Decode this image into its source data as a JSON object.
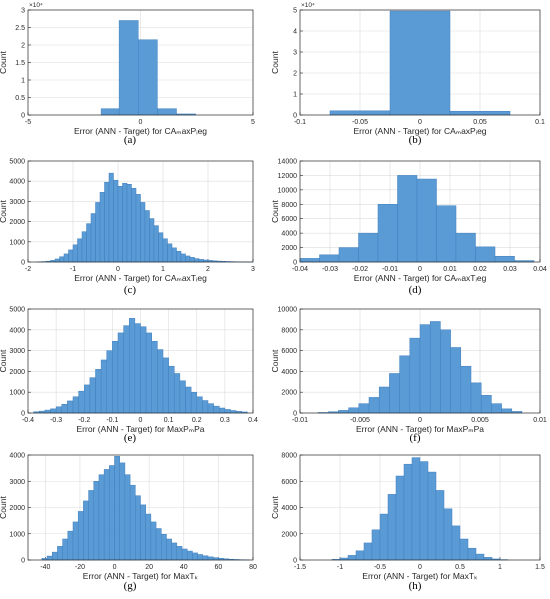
{
  "colors": {
    "bar_fill": "#5b9bd5",
    "bar_edge": "#3f7fbd",
    "grid": "#dcdcdc",
    "axis": "#262626"
  },
  "chart_data": [
    {
      "type": "bar",
      "panel_label": "(a)",
      "xlabel": "Error (ANN - Target) for CAₘaxPᵢeg",
      "ylabel": "Count",
      "xlim": [
        -5,
        5
      ],
      "ylim": [
        0,
        30000
      ],
      "x_ticks": [
        "-5",
        "0",
        "5"
      ],
      "y_ticks": [
        "0",
        "0.5",
        "1",
        "1.5",
        "2",
        "2.5",
        "3"
      ],
      "y_multiplier": "×10⁴",
      "grid": true,
      "bins": [
        {
          "start": -1.75,
          "end": -0.95,
          "count": 1800
        },
        {
          "start": -0.95,
          "end": -0.1,
          "count": 27000
        },
        {
          "start": -0.1,
          "end": 0.75,
          "count": 21500
        },
        {
          "start": 0.75,
          "end": 1.6,
          "count": 1800
        },
        {
          "start": 1.6,
          "end": 2.45,
          "count": 300
        }
      ]
    },
    {
      "type": "bar",
      "panel_label": "(b)",
      "xlabel": "Error (ANN - Target) for CAₘaxPᵢeg",
      "ylabel": "Count",
      "xlim": [
        -0.1,
        0.1
      ],
      "ylim": [
        0,
        50000
      ],
      "x_ticks": [
        "-0.1",
        "-0.05",
        "0",
        "0.05",
        "0.1"
      ],
      "y_ticks": [
        "0",
        "1",
        "2",
        "3",
        "4",
        "5"
      ],
      "y_multiplier": "×10⁴",
      "grid": true,
      "bins": [
        {
          "start": -0.075,
          "end": -0.025,
          "count": 2000
        },
        {
          "start": -0.025,
          "end": 0.025,
          "count": 49500
        },
        {
          "start": 0.025,
          "end": 0.075,
          "count": 1800
        }
      ]
    },
    {
      "type": "bar",
      "panel_label": "(c)",
      "xlabel": "Error (ANN - Target) for CAₘaxTᵢeg",
      "ylabel": "Count",
      "xlim": [
        -2,
        3
      ],
      "ylim": [
        0,
        5000
      ],
      "x_ticks": [
        "-2",
        "-1",
        "0",
        "1",
        "2",
        "3"
      ],
      "y_ticks": [
        "0",
        "1000",
        "2000",
        "3000",
        "4000",
        "5000"
      ],
      "grid": true,
      "bin_start": -1.8,
      "bin_width": 0.1,
      "counts": [
        10,
        20,
        40,
        80,
        150,
        260,
        400,
        600,
        850,
        1150,
        1500,
        1900,
        2400,
        2950,
        3450,
        3950,
        4400,
        4050,
        3750,
        3900,
        3850,
        3650,
        3350,
        2950,
        2550,
        2150,
        1800,
        1450,
        1150,
        900,
        700,
        530,
        400,
        300,
        230,
        170,
        130,
        100,
        80,
        60,
        45,
        35,
        25,
        18,
        12,
        8,
        5,
        3
      ]
    },
    {
      "type": "bar",
      "panel_label": "(d)",
      "xlabel": "Error (ANN - Target) for CAₘaxTᵢeg",
      "ylabel": "Count",
      "xlim": [
        -0.04,
        0.04
      ],
      "ylim": [
        0,
        14000
      ],
      "x_ticks": [
        "-0.04",
        "-0.03",
        "-0.02",
        "-0.01",
        "0",
        "0.01",
        "0.02",
        "0.03",
        "0.04"
      ],
      "y_ticks": [
        "0",
        "2000",
        "4000",
        "6000",
        "8000",
        "10000",
        "12000",
        "14000"
      ],
      "grid": true,
      "bin_start": -0.04,
      "bin_width": 0.0065,
      "counts": [
        500,
        1000,
        2000,
        4000,
        8000,
        12000,
        11500,
        7800,
        4000,
        2100,
        800,
        200
      ]
    },
    {
      "type": "bar",
      "panel_label": "(e)",
      "xlabel": "Error (ANN - Target) for MaxPₘPa",
      "ylabel": "Count",
      "xlim": [
        -0.4,
        0.4
      ],
      "ylim": [
        0,
        5000
      ],
      "x_ticks": [
        "-0.4",
        "-0.3",
        "-0.2",
        "-0.1",
        "0",
        "0.1",
        "0.2",
        "0.3",
        "0.4"
      ],
      "y_ticks": [
        "0",
        "1000",
        "2000",
        "3000",
        "4000",
        "5000"
      ],
      "grid": true,
      "bin_start": -0.38,
      "bin_width": 0.02,
      "counts": [
        60,
        90,
        140,
        200,
        300,
        420,
        580,
        780,
        1050,
        1350,
        1700,
        2100,
        2550,
        3000,
        3450,
        3850,
        4200,
        4550,
        4300,
        4150,
        3850,
        3450,
        3050,
        2650,
        2250,
        1900,
        1550,
        1250,
        1000,
        780,
        600,
        450,
        330,
        240,
        170,
        120,
        80,
        50
      ]
    },
    {
      "type": "bar",
      "panel_label": "(f)",
      "xlabel": "Error (ANN - Target) for MaxPₘPa",
      "ylabel": "Count",
      "xlim": [
        -0.01,
        0.01
      ],
      "ylim": [
        0,
        10000
      ],
      "x_ticks": [
        "-0.01",
        "-0.005",
        "0",
        "0.005",
        "0.01"
      ],
      "y_ticks": [
        "0",
        "2000",
        "4000",
        "6000",
        "8000",
        "10000"
      ],
      "grid": true,
      "bin_start": -0.0085,
      "bin_width": 0.00085,
      "counts": [
        50,
        120,
        250,
        500,
        900,
        1500,
        2500,
        3800,
        5500,
        7200,
        8500,
        8800,
        8000,
        6300,
        4500,
        2900,
        1700,
        900,
        400,
        150
      ]
    },
    {
      "type": "bar",
      "panel_label": "(g)",
      "xlabel": "Error (ANN - Target) for MaxTₖ",
      "ylabel": "Count",
      "xlim": [
        -50,
        80
      ],
      "ylim": [
        0,
        4000
      ],
      "x_ticks": [
        "-40",
        "-20",
        "0",
        "20",
        "40",
        "60",
        "80"
      ],
      "y_ticks": [
        "0",
        "1000",
        "2000",
        "3000",
        "4000"
      ],
      "grid": true,
      "bin_start": -42,
      "bin_width": 3,
      "counts": [
        60,
        150,
        300,
        520,
        800,
        1100,
        1450,
        1850,
        2250,
        2650,
        3000,
        3250,
        3450,
        3600,
        3950,
        3700,
        3250,
        2850,
        2450,
        2100,
        1750,
        1450,
        1200,
        980,
        800,
        650,
        520,
        420,
        340,
        270,
        210,
        160,
        120,
        90,
        65,
        45,
        30,
        20,
        12,
        8
      ]
    },
    {
      "type": "bar",
      "panel_label": "(h)",
      "xlabel": "Error (ANN - Target) for MaxTₖ",
      "ylabel": "Count",
      "xlim": [
        -1.5,
        1.5
      ],
      "ylim": [
        0,
        8000
      ],
      "x_ticks": [
        "-1.5",
        "-1",
        "-0.5",
        "0",
        "0.5",
        "1",
        "1.5"
      ],
      "y_ticks": [
        "0",
        "2000",
        "4000",
        "6000",
        "8000"
      ],
      "grid": true,
      "bin_start": -1.1,
      "bin_width": 0.1,
      "counts": [
        50,
        150,
        350,
        700,
        1300,
        2300,
        3500,
        5000,
        6400,
        7300,
        7800,
        7500,
        6700,
        5300,
        3900,
        2600,
        1600,
        900,
        450,
        200,
        80,
        30
      ]
    }
  ]
}
